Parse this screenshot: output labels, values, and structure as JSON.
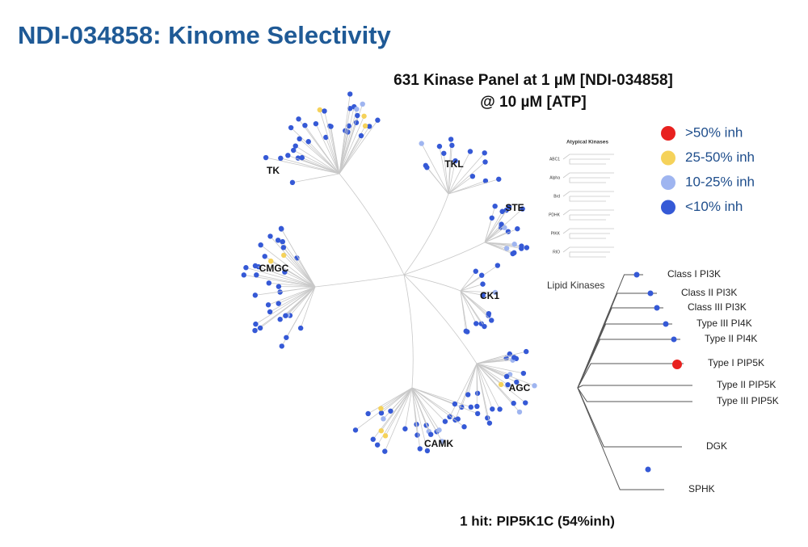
{
  "header": {
    "title": "NDI-034858: Kinome Selectivity"
  },
  "panel": {
    "title_lines": [
      "631 Kinase Panel at 1 µM [NDI-034858]",
      "@ 10 µM [ATP]"
    ]
  },
  "legend": [
    {
      "label": ">50% inh",
      "color": "#e8211f"
    },
    {
      "label": "25-50% inh",
      "color": "#f5d25a"
    },
    {
      "label": "10-25% inh",
      "color": "#9fb5f0"
    },
    {
      "label": "<10% inh",
      "color": "#3559d6"
    }
  ],
  "kinome_groups": [
    "TK",
    "TKL",
    "STE",
    "CMGC",
    "CK1",
    "AGC",
    "CAMK"
  ],
  "atypical": {
    "title": "Atypical Kinases",
    "groups": [
      "ABC1",
      "Alpha",
      "Brd",
      "PDHK",
      "PIKK",
      "RIO"
    ]
  },
  "lipid": {
    "title": "Lipid Kinases",
    "groups": [
      "Class I PI3K",
      "Class II PI3K",
      "Class III PI3K",
      "Type III PI4K",
      "Type II PI4K",
      "Type I PIP5K",
      "Type II PIP5K",
      "Type III PIP5K",
      "DGK",
      "SPHK"
    ]
  },
  "footer": "1 hit: PIP5K1C (54%inh)"
}
